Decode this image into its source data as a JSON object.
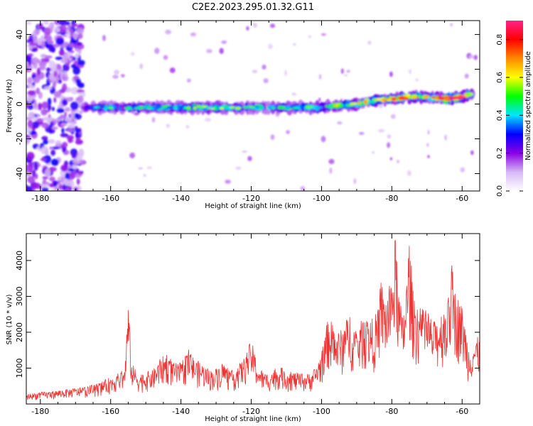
{
  "figure": {
    "title": "C2E2.2023.295.01.32.G11"
  },
  "chart_data": [
    {
      "type": "heatmap",
      "xlabel": "Height of straight line (km)",
      "ylabel": "Frequency (Hz)",
      "xlim": [
        -184,
        -55
      ],
      "ylim": [
        -50,
        48
      ],
      "xticks": [
        -180,
        -160,
        -140,
        -120,
        -100,
        -80,
        -60
      ],
      "yticks": [
        -40,
        -20,
        0,
        20,
        40
      ],
      "grid": false,
      "colorbar": {
        "label": "Normalized spectral amplitude",
        "range": [
          0,
          0.9
        ],
        "ticks": [
          0.0,
          0.2,
          0.4,
          0.6,
          0.8
        ],
        "colormap": [
          "#ffffff",
          "#d6b8f5",
          "#8a00e6",
          "#0000ff",
          "#00e5ff",
          "#00ff00",
          "#ffff00",
          "#ff8800",
          "#ff0000",
          "#ff2288"
        ]
      },
      "ridge": {
        "x": [
          -168,
          -160,
          -150,
          -140,
          -130,
          -120,
          -110,
          -100,
          -95,
          -90,
          -85,
          -80,
          -75,
          -70,
          -65,
          -60,
          -57
        ],
        "frequency": [
          -2,
          -2,
          -2,
          -2,
          -2,
          -2,
          -2,
          -2,
          -1,
          0,
          2,
          3,
          4,
          4,
          3,
          4,
          6
        ],
        "amplitude": [
          0.25,
          0.45,
          0.4,
          0.45,
          0.5,
          0.45,
          0.45,
          0.5,
          0.55,
          0.55,
          0.6,
          0.7,
          0.65,
          0.55,
          0.75,
          0.8,
          0.4
        ]
      },
      "noise_region": {
        "x_range": [
          -184,
          -168
        ],
        "frequency_range": [
          -50,
          48
        ],
        "amplitude": 0.15
      }
    },
    {
      "type": "line",
      "xlabel": "Height of straight line (km)",
      "ylabel": "SNR (10 * v/v)",
      "xlim": [
        -184,
        -55
      ],
      "ylim": [
        0,
        4750
      ],
      "xticks": [
        -180,
        -160,
        -140,
        -120,
        -100,
        -80,
        -60
      ],
      "yticks": [
        1000,
        2000,
        3000,
        4000
      ],
      "grid": false,
      "series": [
        {
          "color": "#ee3333",
          "x": [
            -184,
            -180,
            -176,
            -172,
            -168,
            -164,
            -162,
            -160,
            -158,
            -156,
            -155,
            -154,
            -152,
            -150,
            -148,
            -146,
            -144,
            -142,
            -140,
            -138,
            -136,
            -134,
            -132,
            -130,
            -128,
            -126,
            -124,
            -122,
            -120,
            -118,
            -116,
            -114,
            -112,
            -110,
            -108,
            -106,
            -104,
            -102,
            -100,
            -98,
            -96,
            -94,
            -92,
            -90,
            -88,
            -86,
            -84,
            -83,
            -82,
            -80,
            -79,
            -78,
            -77,
            -76,
            -75,
            -74,
            -72,
            -70,
            -68,
            -66,
            -64,
            -63,
            -62,
            -60,
            -58,
            -57,
            -55
          ],
          "values": [
            280,
            330,
            370,
            420,
            470,
            560,
            650,
            760,
            850,
            1000,
            2900,
            1150,
            850,
            900,
            950,
            1250,
            1450,
            1150,
            1150,
            1550,
            1250,
            1150,
            950,
            1000,
            1200,
            900,
            1050,
            1300,
            1800,
            1050,
            850,
            950,
            1050,
            950,
            900,
            850,
            850,
            1000,
            1450,
            2500,
            2000,
            2100,
            2600,
            2000,
            2500,
            2350,
            2600,
            3550,
            3000,
            3450,
            4750,
            3200,
            2450,
            3200,
            4750,
            3200,
            2700,
            2600,
            2300,
            2600,
            2900,
            4000,
            3200,
            2750,
            1550,
            1800,
            1900
          ]
        }
      ]
    }
  ]
}
